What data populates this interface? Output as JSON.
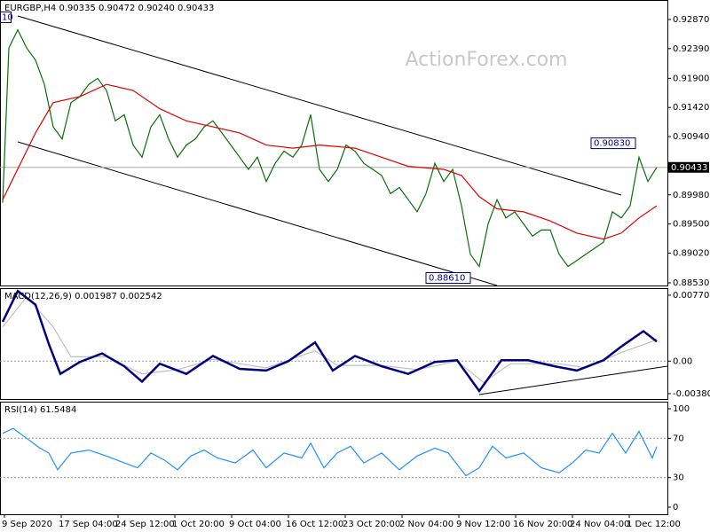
{
  "chart_data": [
    {
      "type": "line",
      "title": "EURGBP,H4 0.90335 0.90472 0.90240 0.90433",
      "watermark": "ActionForex.com",
      "ylim": [
        0.88486,
        0.93191
      ],
      "yticks": [
        {
          "value": 0.9287,
          "label": "0.92870"
        },
        {
          "value": 0.9239,
          "label": "0.92390"
        },
        {
          "value": 0.919,
          "label": "0.91900"
        },
        {
          "value": 0.9142,
          "label": "0.91420"
        },
        {
          "value": 0.9094,
          "label": "0.90940"
        },
        {
          "value": 0.8998,
          "label": "0.89980"
        },
        {
          "value": 0.895,
          "label": "0.89500"
        },
        {
          "value": 0.8902,
          "label": "0.89020"
        },
        {
          "value": 0.8853,
          "label": "0.88530"
        }
      ],
      "last_price": {
        "value": 0.90433,
        "label": "0.90433"
      },
      "annotations": [
        {
          "label": "0.90830",
          "value": 0.9083,
          "x": 716
        },
        {
          "label": "0.88610",
          "value": 0.8861,
          "x": 530
        },
        {
          "label": "10"
        }
      ],
      "series": [
        {
          "color": "#0a6e0a",
          "x": [
            3,
            10,
            20,
            30,
            40,
            50,
            60,
            70,
            80,
            90,
            100,
            110,
            120,
            130,
            140,
            150,
            160,
            170,
            180,
            190,
            200,
            210,
            220,
            230,
            240,
            250,
            260,
            270,
            280,
            290,
            300,
            310,
            320,
            330,
            340,
            350,
            360,
            370,
            380,
            390,
            400,
            410,
            420,
            430,
            440,
            450,
            460,
            470,
            480,
            490,
            500,
            510,
            520,
            530,
            540,
            550,
            560,
            570,
            580,
            590,
            600,
            610,
            620,
            630,
            640,
            650,
            660,
            670,
            680,
            690,
            700,
            710,
            720,
            730,
            740
          ],
          "values": [
            0.8985,
            0.924,
            0.927,
            0.924,
            0.922,
            0.918,
            0.911,
            0.909,
            0.915,
            0.916,
            0.918,
            0.919,
            0.917,
            0.912,
            0.913,
            0.908,
            0.906,
            0.911,
            0.913,
            0.909,
            0.906,
            0.908,
            0.909,
            0.911,
            0.912,
            0.91,
            0.908,
            0.906,
            0.904,
            0.906,
            0.902,
            0.905,
            0.907,
            0.906,
            0.908,
            0.913,
            0.904,
            0.902,
            0.904,
            0.908,
            0.907,
            0.905,
            0.904,
            0.903,
            0.9,
            0.901,
            0.899,
            0.897,
            0.9,
            0.905,
            0.902,
            0.904,
            0.898,
            0.89,
            0.888,
            0.895,
            0.899,
            0.896,
            0.897,
            0.895,
            0.893,
            0.894,
            0.894,
            0.89,
            0.888,
            0.889,
            0.89,
            0.891,
            0.892,
            0.897,
            0.896,
            0.898,
            0.906,
            0.902,
            0.90433
          ]
        },
        {
          "color": "#e00000",
          "x": [
            3,
            40,
            60,
            90,
            120,
            150,
            180,
            210,
            240,
            270,
            300,
            330,
            360,
            400,
            430,
            460,
            500,
            520,
            540,
            560,
            590,
            620,
            650,
            680,
            700,
            720,
            740
          ],
          "values": [
            0.899,
            0.91,
            0.915,
            0.916,
            0.918,
            0.917,
            0.914,
            0.912,
            0.911,
            0.91,
            0.908,
            0.9075,
            0.908,
            0.9075,
            0.906,
            0.9045,
            0.904,
            0.903,
            0.8995,
            0.8975,
            0.897,
            0.8955,
            0.8935,
            0.8925,
            0.8935,
            0.896,
            0.898
          ]
        }
      ]
    },
    {
      "type": "line",
      "title": "MACD(12,26,9) 0.001987 0.002542",
      "ylim": [
        -0.00443,
        0.00853
      ],
      "yticks": [
        0.007704,
        {
          "value": 0,
          "label": "0.00"
        },
        -0.003804
      ],
      "series": [
        {
          "color": "#c0c0c0",
          "x": [
            3,
            30,
            60,
            80,
            120,
            160,
            200,
            240,
            300,
            355,
            380,
            430,
            470,
            515,
            545,
            575,
            630,
            660,
            700,
            740
          ],
          "values": [
            0.004,
            0.0075,
            0.004,
            0.0005,
            0.0005,
            -0.0015,
            -0.001,
            0.0002,
            -0.0008,
            0.0012,
            -0.0005,
            -0.0005,
            -0.001,
            0,
            -0.0025,
            -0.0003,
            -0.0003,
            -0.0008,
            0.001,
            0.0025
          ]
        },
        {
          "color": "#000080",
          "x": [
            3,
            20,
            40,
            55,
            68,
            90,
            115,
            140,
            160,
            180,
            210,
            240,
            270,
            300,
            325,
            355,
            375,
            400,
            430,
            460,
            490,
            515,
            540,
            565,
            595,
            625,
            650,
            680,
            700,
            725,
            740
          ],
          "values": [
            0.0046,
            0.0082,
            0.0066,
            0.002,
            -0.0015,
            -0.0001,
            0.0009,
            -0.0006,
            -0.0024,
            -0.0003,
            -0.0015,
            0.0006,
            -0.0009,
            -0.0011,
            0,
            0.0022,
            -0.0011,
            0.0006,
            -0.0006,
            -0.0015,
            -0.0001,
            0.0001,
            -0.0035,
            0.0001,
            0.0001,
            -0.0006,
            -0.0011,
            0.0001,
            0.0017,
            0.0035,
            0.0023
          ]
        }
      ]
    },
    {
      "type": "line",
      "title": "RSI(14) 61.5484",
      "ylim": [
        -7.2,
        107.2
      ],
      "yticks": [
        100,
        70,
        30,
        0
      ],
      "series": [
        {
          "color": "#1e90ff",
          "x": [
            3,
            15,
            30,
            45,
            55,
            65,
            80,
            100,
            120,
            140,
            155,
            170,
            185,
            200,
            215,
            230,
            245,
            265,
            285,
            300,
            320,
            340,
            350,
            365,
            380,
            395,
            410,
            430,
            450,
            470,
            490,
            505,
            525,
            540,
            555,
            570,
            590,
            610,
            630,
            645,
            660,
            675,
            690,
            705,
            720,
            735,
            740
          ],
          "values": [
            75,
            80,
            70,
            60,
            55,
            38,
            55,
            58,
            52,
            45,
            40,
            55,
            48,
            38,
            52,
            58,
            50,
            45,
            58,
            40,
            55,
            50,
            65,
            40,
            55,
            62,
            45,
            55,
            38,
            52,
            60,
            55,
            32,
            40,
            62,
            50,
            55,
            40,
            35,
            45,
            58,
            55,
            75,
            55,
            77,
            50,
            61.5484
          ]
        }
      ]
    }
  ],
  "x_axis": {
    "xlim": [
      0,
      752
    ],
    "xticks": [
      {
        "value": 5,
        "label": "9 Sep 2020"
      },
      {
        "value": 69,
        "label": "17 Sep 04:00"
      },
      {
        "value": 133,
        "label": "24 Sep 12:00"
      },
      {
        "value": 197,
        "label": "1 Oct 20:00"
      },
      {
        "value": 261,
        "label": "9 Oct 04:00"
      },
      {
        "value": 325,
        "label": "16 Oct 12:00"
      },
      {
        "value": 389,
        "label": "23 Oct 20:00"
      },
      {
        "value": 453,
        "label": "2 Nov 04:00"
      },
      {
        "value": 517,
        "label": "9 Nov 12:00"
      },
      {
        "value": 581,
        "label": "16 Nov 20:00"
      },
      {
        "value": 645,
        "label": "24 Nov 04:00"
      },
      {
        "value": 709,
        "label": "1 Dec 12:00"
      }
    ]
  }
}
